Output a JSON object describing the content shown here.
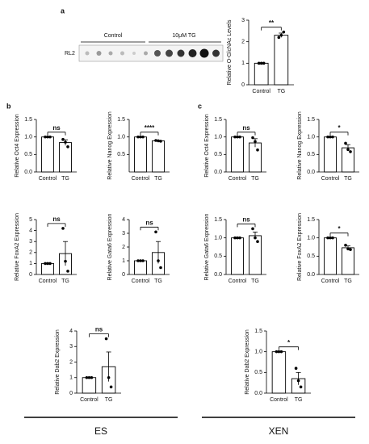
{
  "figure": {
    "panel_labels": [
      "a",
      "b",
      "c"
    ],
    "group_labels": [
      "ES",
      "XEN"
    ],
    "blot": {
      "control": "Control",
      "treatment": "10μM TG",
      "row": "RL2"
    }
  },
  "chart_data": [
    {
      "type": "bar",
      "ylabel": "Relative O-GlcNAc Levels",
      "categories": [
        "Control",
        "TG"
      ],
      "values": [
        1,
        2.3
      ],
      "errors": [
        0,
        0.1
      ],
      "points": [
        [
          1,
          1,
          1
        ],
        [
          2.2,
          2.3,
          2.45
        ]
      ],
      "significance": "**",
      "color": "#000000",
      "ylim": [
        0,
        3
      ],
      "yticks": [
        0,
        1,
        2,
        3
      ]
    },
    {
      "type": "bar",
      "ylabel": "Relative Oct4 Expression",
      "categories": [
        "Control",
        "TG"
      ],
      "values": [
        1,
        0.84
      ],
      "errors": [
        0,
        0.08
      ],
      "points": [
        [
          1,
          1,
          1
        ],
        [
          0.93,
          0.85,
          0.72
        ]
      ],
      "significance": "ns",
      "color": "#000000",
      "ylim": [
        0,
        1.5
      ],
      "yticks": [
        {
          "value": 0,
          "label": "0.0"
        },
        0.5,
        {
          "value": 1,
          "label": "1.0"
        },
        1.5
      ]
    },
    {
      "type": "bar",
      "ylabel": "Relative Nanog Expression",
      "categories": [
        "Control",
        "TG"
      ],
      "values": [
        1,
        0.89
      ],
      "errors": [
        0,
        0.01
      ],
      "points": [
        [
          1,
          1,
          1
        ],
        [
          0.9,
          0.89,
          0.88
        ]
      ],
      "significance": "****",
      "color": "#000000",
      "ylim": [
        0,
        1.5
      ],
      "yticks": [
        0.5,
        {
          "value": 1,
          "label": "1.0"
        },
        1.5
      ]
    },
    {
      "type": "bar",
      "ylabel": "Relative FoxA2 Expression",
      "categories": [
        "Control",
        "TG"
      ],
      "values": [
        1,
        1.9
      ],
      "errors": [
        0,
        1.1
      ],
      "points": [
        [
          1,
          1,
          1
        ],
        [
          4.2,
          1.2,
          0.3
        ]
      ],
      "significance": "ns",
      "color": "#000000",
      "ylim": [
        0,
        5
      ],
      "yticks": [
        0,
        1,
        2,
        3,
        4,
        5
      ]
    },
    {
      "type": "bar",
      "ylabel": "Relative Gata6 Expression",
      "categories": [
        "Control",
        "TG"
      ],
      "values": [
        1,
        1.6
      ],
      "errors": [
        0,
        0.8
      ],
      "points": [
        [
          1,
          1,
          1
        ],
        [
          3.1,
          1.0,
          0.5
        ]
      ],
      "significance": "ns",
      "color": "#000000",
      "ylim": [
        0,
        4
      ],
      "yticks": [
        0,
        1,
        2,
        3,
        4
      ]
    },
    {
      "type": "bar",
      "ylabel": "Relative Dab2 Expression",
      "categories": [
        "Control",
        "TG"
      ],
      "values": [
        1,
        1.7
      ],
      "errors": [
        0,
        0.95
      ],
      "points": [
        [
          1,
          1,
          1
        ],
        [
          3.5,
          1.0,
          0.4
        ]
      ],
      "significance": "ns",
      "color": "#000000",
      "ylim": [
        0,
        4
      ],
      "yticks": [
        0,
        1,
        2,
        3,
        4
      ]
    },
    {
      "type": "bar",
      "ylabel": "Relative Oct4 Expression",
      "categories": [
        "Control",
        "TG"
      ],
      "values": [
        1,
        0.83
      ],
      "errors": [
        0,
        0.12
      ],
      "points": [
        [
          1,
          1,
          1
        ],
        [
          0.98,
          0.87,
          0.63
        ]
      ],
      "significance": "ns",
      "color": "#000000",
      "ylim": [
        0,
        1.5
      ],
      "yticks": [
        {
          "value": 0,
          "label": "0.0"
        },
        0.5,
        {
          "value": 1,
          "label": "1.0"
        },
        1.5
      ]
    },
    {
      "type": "bar",
      "ylabel": "Relative Nanog Expression",
      "categories": [
        "Control",
        "TG"
      ],
      "values": [
        1,
        0.69
      ],
      "errors": [
        0,
        0.09
      ],
      "points": [
        [
          1,
          1,
          1
        ],
        [
          0.82,
          0.64,
          0.58
        ]
      ],
      "significance": "*",
      "color": "#000000",
      "ylim": [
        0,
        1.5
      ],
      "yticks": [
        {
          "value": 0,
          "label": "0.0"
        },
        0.5,
        {
          "value": 1,
          "label": "1.0"
        },
        1.5
      ]
    },
    {
      "type": "bar",
      "ylabel": "Relative Gata6 Expression",
      "categories": [
        "Control",
        "TG"
      ],
      "values": [
        1,
        1.06
      ],
      "errors": [
        0,
        0.1
      ],
      "points": [
        [
          1,
          1,
          1
        ],
        [
          1.25,
          1.0,
          0.9
        ]
      ],
      "significance": "ns",
      "color": "#000000",
      "ylim": [
        0,
        1.5
      ],
      "yticks": [
        {
          "value": 0,
          "label": "0.0"
        },
        0.5,
        {
          "value": 1,
          "label": "1.0"
        },
        1.5
      ]
    },
    {
      "type": "bar",
      "ylabel": "Relative FoxA2 Expression",
      "categories": [
        "Control",
        "TG"
      ],
      "values": [
        1,
        0.73
      ],
      "errors": [
        0,
        0.05
      ],
      "points": [
        [
          1,
          1,
          1
        ],
        [
          0.8,
          0.7,
          0.68
        ]
      ],
      "significance": "*",
      "color": "#000000",
      "ylim": [
        0,
        1.5
      ],
      "yticks": [
        {
          "value": 0,
          "label": "0.0"
        },
        0.5,
        {
          "value": 1,
          "label": "1.0"
        },
        1.5
      ]
    },
    {
      "type": "bar",
      "ylabel": "Relative Dab2 Expression",
      "categories": [
        "Control",
        "TG"
      ],
      "values": [
        1,
        0.35
      ],
      "errors": [
        0,
        0.15
      ],
      "points": [
        [
          1,
          1,
          1
        ],
        [
          0.6,
          0.3,
          0.15
        ]
      ],
      "significance": "*",
      "color": "#000000",
      "ylim": [
        0,
        1.5
      ],
      "yticks": [
        {
          "value": 0,
          "label": "0.0"
        },
        0.5,
        {
          "value": 1,
          "label": "1.0"
        },
        1.5
      ]
    }
  ]
}
